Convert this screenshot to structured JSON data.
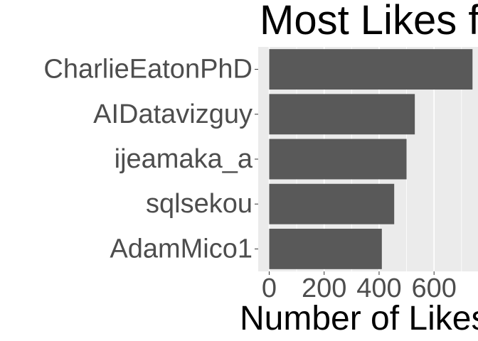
{
  "chart_data": {
    "type": "bar",
    "orientation": "horizontal",
    "title": "Most Likes f",
    "xlabel": "Number of Likes",
    "ylabel": "",
    "categories": [
      "AdamMico1",
      "sqlsekou",
      "ijeamaka_a",
      "AIDatavizguy",
      "CharlieEatonPhD"
    ],
    "values": [
      410,
      455,
      500,
      530,
      740
    ],
    "xlim": [
      -40,
      760
    ],
    "x_ticks": [
      0,
      200,
      400,
      600
    ],
    "x_tick_labels": [
      "0",
      "200",
      "400",
      "600"
    ],
    "grid": true,
    "legend": "none",
    "colors": {
      "bar": "#595959",
      "panel": "#ebebeb",
      "grid": "#ffffff",
      "tick_text": "#4d4d4d",
      "title_text": "#000000"
    }
  }
}
